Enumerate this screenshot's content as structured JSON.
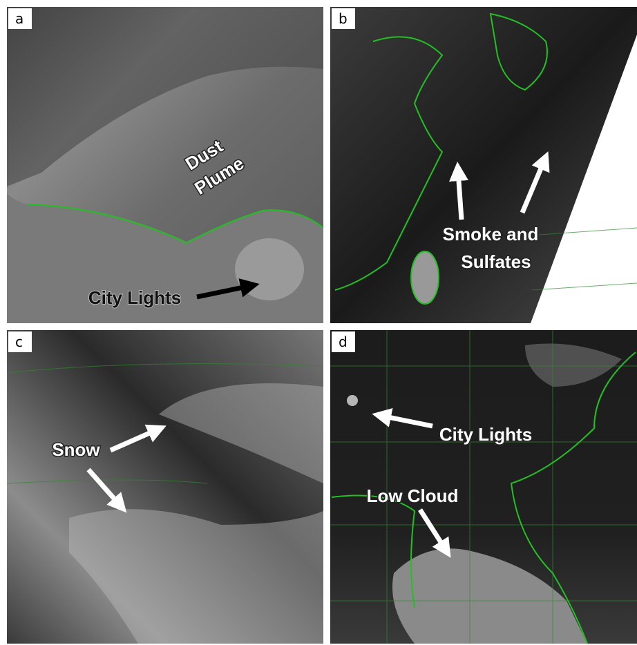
{
  "panels": [
    {
      "label": "a",
      "annotations": [
        "Dust",
        "Plume",
        "City Lights"
      ]
    },
    {
      "label": "b",
      "annotations": [
        "Smoke and",
        "Sulfates"
      ]
    },
    {
      "label": "c",
      "annotations": [
        "Snow"
      ]
    },
    {
      "label": "d",
      "annotations": [
        "City Lights",
        "Low Cloud"
      ]
    }
  ]
}
